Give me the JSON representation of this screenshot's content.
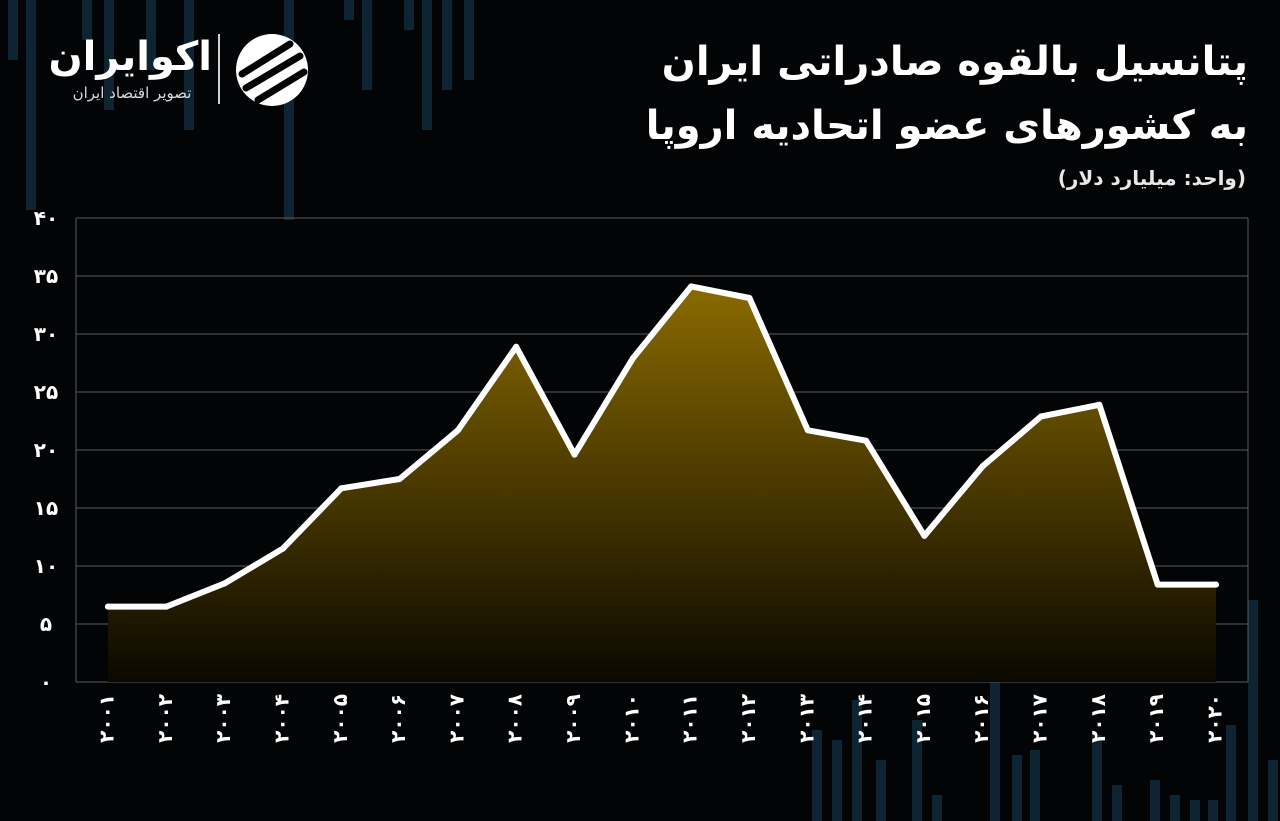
{
  "brand": {
    "name": "اکوایران",
    "tagline": "تصویر اقتصاد ایران"
  },
  "header": {
    "title_line1": "پتانسیل بالقوه صادراتی ایران",
    "title_line2": "به کشورهای عضو اتحادیه اروپا",
    "unit": "(واحد: میلیارد دلار)"
  },
  "colors": {
    "background": "#030405",
    "line": "#ffffff",
    "fill_top": "#8a6a00",
    "fill_bottom": "#0a0800",
    "grid": "#5a5a5a",
    "decor_bars": "#0d2433"
  },
  "chart_data": {
    "type": "area",
    "title": "پتانسیل بالقوه صادراتی ایران به کشورهای عضو اتحادیه اروپا",
    "ylabel": "(واحد: میلیارد دلار)",
    "xlabel": "",
    "ylim": [
      0,
      40
    ],
    "yticks": [
      0,
      5,
      10,
      15,
      20,
      25,
      30,
      35,
      40
    ],
    "ytick_labels": [
      "۰",
      "۵",
      "۱۰",
      "۱۵",
      "۲۰",
      "۲۵",
      "۳۰",
      "۳۵",
      "۴۰"
    ],
    "grid": true,
    "categories": [
      "۲۰۰۱",
      "۲۰۰۲",
      "۲۰۰۳",
      "۲۰۰۴",
      "۲۰۰۵",
      "۲۰۰۶",
      "۲۰۰۷",
      "۲۰۰۸",
      "۲۰۰۹",
      "۲۰۱۰",
      "۲۰۱۱",
      "۲۰۱۲",
      "۲۰۱۳",
      "۲۰۱۴",
      "۲۰۱۵",
      "۲۰۱۶",
      "۲۰۱۷",
      "۲۰۱۸",
      "۲۰۱۹",
      "۲۰۲۰"
    ],
    "x": [
      2001,
      2002,
      2003,
      2004,
      2005,
      2006,
      2007,
      2008,
      2009,
      2010,
      2011,
      2012,
      2013,
      2014,
      2015,
      2016,
      2017,
      2018,
      2019,
      2020
    ],
    "values": [
      6.5,
      6.5,
      8.5,
      11.5,
      16.7,
      17.5,
      21.7,
      28.9,
      19.6,
      27.9,
      34.1,
      33.1,
      21.7,
      20.8,
      12.6,
      18.6,
      22.9,
      23.9,
      8.4,
      8.4
    ]
  }
}
